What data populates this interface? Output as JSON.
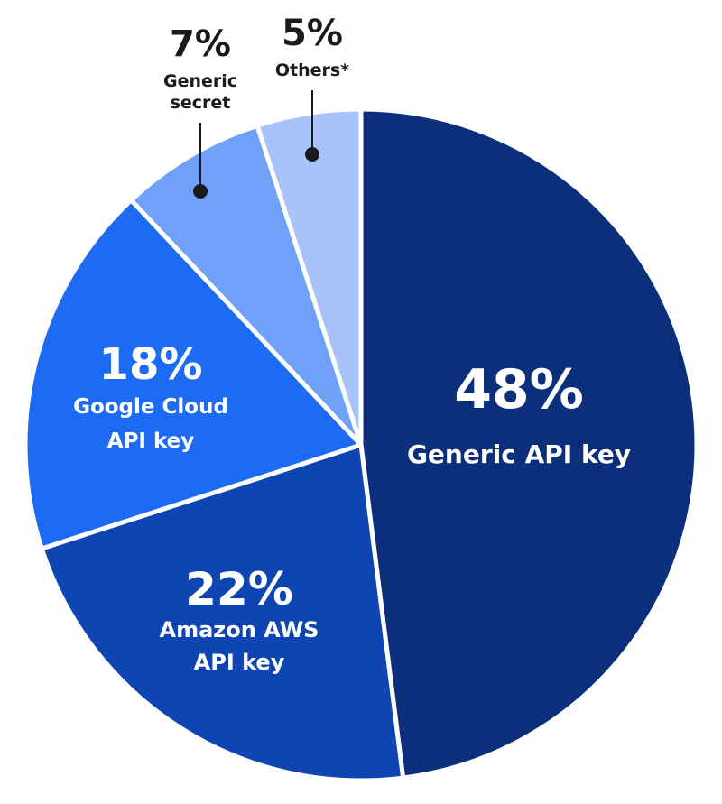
{
  "chart_data": {
    "type": "pie",
    "start": "top, clockwise",
    "slices": [
      {
        "value": 48,
        "percent_label": "48%",
        "label_lines": [
          "Generic API key"
        ],
        "color": "#0B2F7A"
      },
      {
        "value": 22,
        "percent_label": "22%",
        "label_lines": [
          "Amazon AWS",
          "API key"
        ],
        "color": "#0F45B3"
      },
      {
        "value": 18,
        "percent_label": "18%",
        "label_lines": [
          "Google Cloud",
          "API key"
        ],
        "color": "#1D6BF5"
      },
      {
        "value": 7,
        "percent_label": "7%",
        "label_lines": [
          "Generic",
          "secret"
        ],
        "color": "#6EA1F7"
      },
      {
        "value": 5,
        "percent_label": "5%",
        "label_lines": [
          "Others*"
        ],
        "color": "#A7C3FA"
      }
    ],
    "separator_color": "#ffffff",
    "leader_color": "#1a1a1a"
  }
}
